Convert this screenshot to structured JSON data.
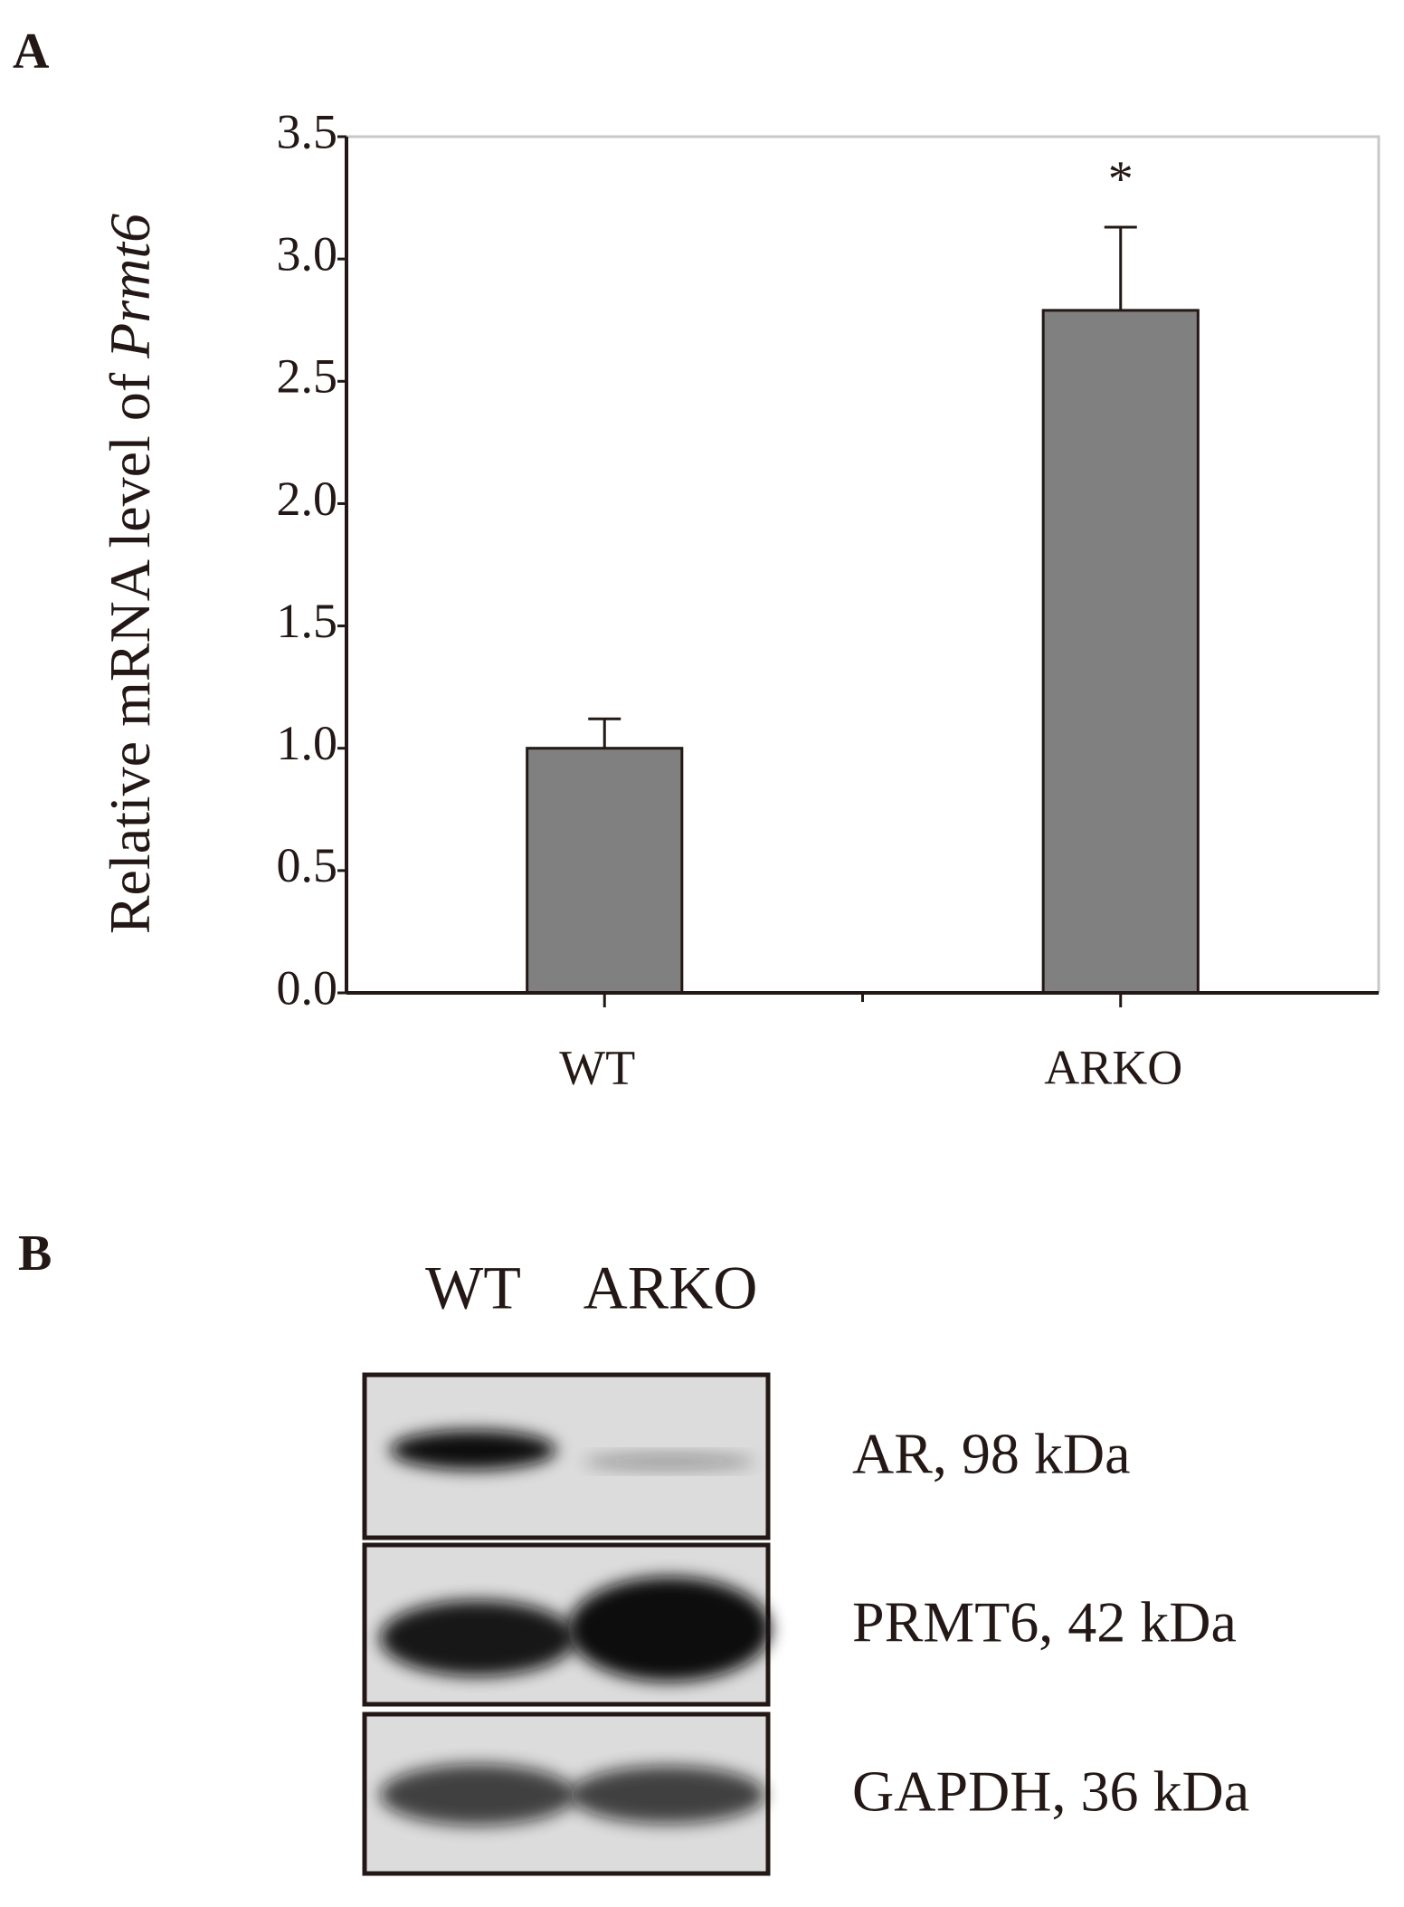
{
  "panel_labels": [
    "A",
    "B"
  ],
  "chart_data": {
    "type": "bar",
    "y_label_parts": [
      "Relative mRNA level of",
      "Prmt6"
    ],
    "categories": [
      "WT",
      "ARKO"
    ],
    "values": [
      1.0,
      2.79
    ],
    "errors": [
      0.12,
      0.34
    ],
    "annotations": [
      "",
      "*"
    ],
    "color": "#808080",
    "ylim": [
      0,
      3.5
    ],
    "yticks": [
      {
        "value": 0,
        "label": "0.0"
      },
      {
        "value": 0.5,
        "label": "0.5"
      },
      {
        "value": 1,
        "label": "1.0"
      },
      {
        "value": 1.5,
        "label": "1.5"
      },
      {
        "value": 2,
        "label": "2.0"
      },
      {
        "value": 2.5,
        "label": "2.5"
      },
      {
        "value": 3,
        "label": "3.0"
      },
      {
        "value": 3.5,
        "label": "3.5"
      }
    ]
  },
  "blot": {
    "lanes": [
      "WT",
      "ARKO"
    ],
    "rows": [
      "AR, 98 kDa",
      "PRMT6, 42 kDa",
      "GAPDH, 36 kDa"
    ]
  }
}
